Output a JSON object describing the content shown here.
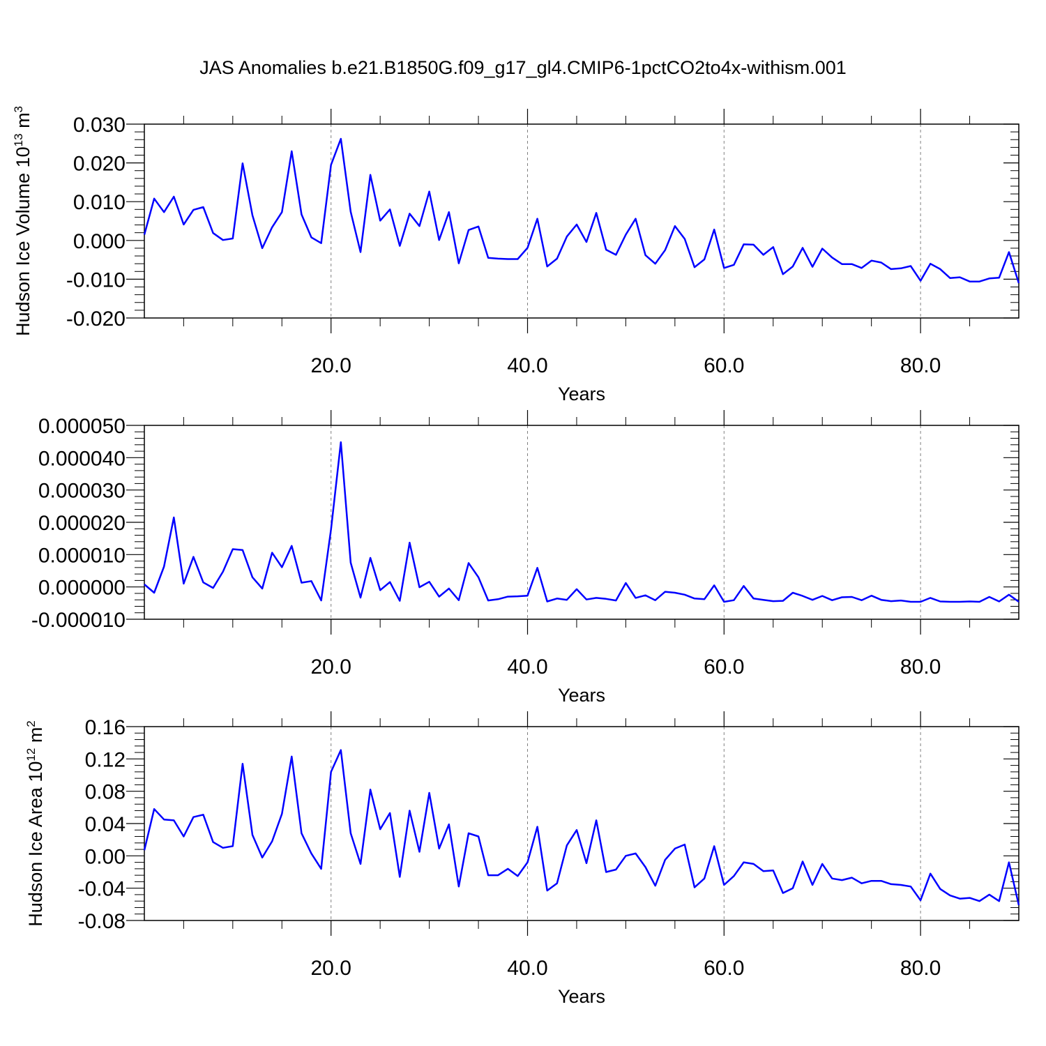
{
  "figure_title": "JAS Anomalies b.e21.B1850G.f09_g17_gl4.CMIP6-1pctCO2to4x-withism.001",
  "colors": {
    "series": "#0000ff",
    "axes": "#000000",
    "grid": "#808080"
  },
  "chart_data": [
    {
      "type": "line",
      "title": "JAS Anomalies b.e21.B1850G.f09_g17_gl4.CMIP6-1pctCO2to4x-withism.001",
      "xlabel": "Years",
      "ylabel": "Hudson Ice Volume 10¹³ m³",
      "ylabel_main": "Hudson Ice Volume 10",
      "ylabel_exp1": "13",
      "ylabel_unit": " m",
      "ylabel_exp2": "3",
      "xlim": [
        1,
        90
      ],
      "ylim": [
        -0.02,
        0.03
      ],
      "xticks": [
        20,
        40,
        60,
        80
      ],
      "xtick_labels": [
        "20.0",
        "40.0",
        "60.0",
        "80.0"
      ],
      "yticks": [
        -0.02,
        -0.01,
        0.0,
        0.01,
        0.02,
        0.03
      ],
      "ytick_labels": [
        "-0.020",
        "-0.010",
        "0.000",
        "0.010",
        "0.020",
        "0.030"
      ],
      "grid": "vertical dashed at x ticks",
      "x": [
        1,
        2,
        3,
        4,
        5,
        6,
        7,
        8,
        9,
        10,
        11,
        12,
        13,
        14,
        15,
        16,
        17,
        18,
        19,
        20,
        21,
        22,
        23,
        24,
        25,
        26,
        27,
        28,
        29,
        30,
        31,
        32,
        33,
        34,
        35,
        36,
        37,
        38,
        39,
        40,
        41,
        42,
        43,
        44,
        45,
        46,
        47,
        48,
        49,
        50,
        51,
        52,
        53,
        54,
        55,
        56,
        57,
        58,
        59,
        60,
        61,
        62,
        63,
        64,
        65,
        66,
        67,
        68,
        69,
        70,
        71,
        72,
        73,
        74,
        75,
        76,
        77,
        78,
        79,
        80,
        81,
        82,
        83,
        84,
        85,
        86,
        87,
        88,
        89,
        90
      ],
      "y": [
        0.0015,
        0.0108,
        0.0073,
        0.0113,
        0.0041,
        0.0079,
        0.0086,
        0.0019,
        0.0001,
        0.0005,
        0.0199,
        0.0065,
        -0.002,
        0.0034,
        0.0073,
        0.023,
        0.0067,
        0.0008,
        -0.0007,
        0.0195,
        0.0262,
        0.0074,
        -0.003,
        0.0169,
        0.0051,
        0.008,
        -0.0014,
        0.0069,
        0.0037,
        0.0126,
        0.0001,
        0.0073,
        -0.0059,
        0.0027,
        0.0036,
        -0.0045,
        -0.0047,
        -0.0048,
        -0.0048,
        -0.0019,
        0.0056,
        -0.0067,
        -0.0047,
        0.001,
        0.0041,
        -0.0004,
        0.0071,
        -0.0024,
        -0.0037,
        0.0015,
        0.0056,
        -0.0038,
        -0.006,
        -0.0025,
        0.0037,
        0.0004,
        -0.0069,
        -0.0049,
        0.0028,
        -0.0071,
        -0.0063,
        -0.001,
        -0.0011,
        -0.0037,
        -0.0017,
        -0.0087,
        -0.0067,
        -0.0019,
        -0.0068,
        -0.0021,
        -0.0044,
        -0.0061,
        -0.0061,
        -0.0071,
        -0.0052,
        -0.0057,
        -0.0074,
        -0.0072,
        -0.0066,
        -0.0104,
        -0.006,
        -0.0074,
        -0.0097,
        -0.0095,
        -0.0106,
        -0.0106,
        -0.0098,
        -0.0096,
        -0.003,
        -0.011
      ]
    },
    {
      "type": "line",
      "title": "",
      "xlabel": "Years",
      "ylabel": "",
      "xlim": [
        1,
        90
      ],
      "ylim": [
        -1e-05,
        5e-05
      ],
      "xticks": [
        20,
        40,
        60,
        80
      ],
      "xtick_labels": [
        "20.0",
        "40.0",
        "60.0",
        "80.0"
      ],
      "yticks": [
        -1e-05,
        0.0,
        1e-05,
        2e-05,
        3e-05,
        4e-05,
        5e-05
      ],
      "ytick_labels": [
        "-0.000010",
        "0.000000",
        "0.000010",
        "0.000020",
        "0.000030",
        "0.000040",
        "0.000050"
      ],
      "grid": "vertical dashed at x ticks",
      "x": [
        1,
        2,
        3,
        4,
        5,
        6,
        7,
        8,
        9,
        10,
        11,
        12,
        13,
        14,
        15,
        16,
        17,
        18,
        19,
        20,
        21,
        22,
        23,
        24,
        25,
        26,
        27,
        28,
        29,
        30,
        31,
        32,
        33,
        34,
        35,
        36,
        37,
        38,
        39,
        40,
        41,
        42,
        43,
        44,
        45,
        46,
        47,
        48,
        49,
        50,
        51,
        52,
        53,
        54,
        55,
        56,
        57,
        58,
        59,
        60,
        61,
        62,
        63,
        64,
        65,
        66,
        67,
        68,
        69,
        70,
        71,
        72,
        73,
        74,
        75,
        76,
        77,
        78,
        79,
        80,
        81,
        82,
        83,
        84,
        85,
        86,
        87,
        88,
        89,
        90
      ],
      "y": [
        8e-07,
        -1.8e-06,
        6.3e-06,
        2.15e-05,
        1e-06,
        9.3e-06,
        1.4e-06,
        -3e-07,
        4.7e-06,
        1.17e-05,
        1.14e-05,
        3e-06,
        -5e-07,
        1.06e-05,
        6.1e-06,
        1.27e-05,
        1.3e-06,
        1.8e-06,
        -4.2e-06,
        1.78e-05,
        4.48e-05,
        7.5e-06,
        -3.3e-06,
        9e-06,
        -1e-06,
        1.5e-06,
        -4.3e-06,
        1.37e-05,
        -1e-07,
        1.6e-06,
        -3e-06,
        -5e-07,
        -4.1e-06,
        7.4e-06,
        3e-06,
        -4.2e-06,
        -3.8e-06,
        -3e-06,
        -2.9e-06,
        -2.7e-06,
        5.9e-06,
        -4.5e-06,
        -3.6e-06,
        -4e-06,
        -7e-07,
        -3.9e-06,
        -3.4e-06,
        -3.7e-06,
        -4.2e-06,
        1.2e-06,
        -3.4e-06,
        -2.6e-06,
        -4.1e-06,
        -1.5e-06,
        -1.8e-06,
        -2.4e-06,
        -3.6e-06,
        -3.8e-06,
        5e-07,
        -4.6e-06,
        -4.1e-06,
        3e-07,
        -3.6e-06,
        -4e-06,
        -4.4e-06,
        -4.3e-06,
        -1.8e-06,
        -2.8e-06,
        -4e-06,
        -2.8e-06,
        -4.1e-06,
        -3.2e-06,
        -3.1e-06,
        -4.1e-06,
        -2.7e-06,
        -4e-06,
        -4.4e-06,
        -4.2e-06,
        -4.6e-06,
        -4.6e-06,
        -3.4e-06,
        -4.5e-06,
        -4.6e-06,
        -4.6e-06,
        -4.5e-06,
        -4.6e-06,
        -3.1e-06,
        -4.5e-06,
        -2.4e-06,
        -4.6e-06
      ]
    },
    {
      "type": "line",
      "title": "",
      "xlabel": "Years",
      "ylabel": "Hudson Ice Area 10¹² m²",
      "ylabel_main": "Hudson Ice Area 10",
      "ylabel_exp1": "12",
      "ylabel_unit": " m",
      "ylabel_exp2": "2",
      "xlim": [
        1,
        90
      ],
      "ylim": [
        -0.08,
        0.16
      ],
      "xticks": [
        20,
        40,
        60,
        80
      ],
      "xtick_labels": [
        "20.0",
        "40.0",
        "60.0",
        "80.0"
      ],
      "yticks": [
        -0.08,
        -0.04,
        0.0,
        0.04,
        0.08,
        0.12,
        0.16
      ],
      "ytick_labels": [
        "-0.08",
        "-0.04",
        "0.00",
        "0.04",
        "0.08",
        "0.12",
        "0.16"
      ],
      "grid": "vertical dashed at x ticks",
      "x": [
        1,
        2,
        3,
        4,
        5,
        6,
        7,
        8,
        9,
        10,
        11,
        12,
        13,
        14,
        15,
        16,
        17,
        18,
        19,
        20,
        21,
        22,
        23,
        24,
        25,
        26,
        27,
        28,
        29,
        30,
        31,
        32,
        33,
        34,
        35,
        36,
        37,
        38,
        39,
        40,
        41,
        42,
        43,
        44,
        45,
        46,
        47,
        48,
        49,
        50,
        51,
        52,
        53,
        54,
        55,
        56,
        57,
        58,
        59,
        60,
        61,
        62,
        63,
        64,
        65,
        66,
        67,
        68,
        69,
        70,
        71,
        72,
        73,
        74,
        75,
        76,
        77,
        78,
        79,
        80,
        81,
        82,
        83,
        84,
        85,
        86,
        87,
        88,
        89,
        90
      ],
      "y": [
        0.007,
        0.058,
        0.045,
        0.044,
        0.024,
        0.048,
        0.051,
        0.017,
        0.01,
        0.012,
        0.114,
        0.026,
        -0.002,
        0.018,
        0.052,
        0.123,
        0.028,
        0.003,
        -0.016,
        0.104,
        0.131,
        0.028,
        -0.01,
        0.082,
        0.033,
        0.053,
        -0.026,
        0.056,
        0.005,
        0.078,
        0.009,
        0.039,
        -0.038,
        0.028,
        0.024,
        -0.024,
        -0.024,
        -0.016,
        -0.025,
        -0.008,
        0.036,
        -0.043,
        -0.034,
        0.013,
        0.032,
        -0.009,
        0.044,
        -0.02,
        -0.017,
        0.0,
        0.003,
        -0.014,
        -0.037,
        -0.005,
        0.009,
        0.014,
        -0.039,
        -0.028,
        0.012,
        -0.036,
        -0.025,
        -0.008,
        -0.01,
        -0.019,
        -0.018,
        -0.046,
        -0.04,
        -0.007,
        -0.036,
        -0.01,
        -0.028,
        -0.03,
        -0.027,
        -0.034,
        -0.031,
        -0.031,
        -0.035,
        -0.036,
        -0.038,
        -0.055,
        -0.022,
        -0.041,
        -0.049,
        -0.053,
        -0.052,
        -0.056,
        -0.048,
        -0.056,
        -0.008,
        -0.061
      ]
    }
  ]
}
